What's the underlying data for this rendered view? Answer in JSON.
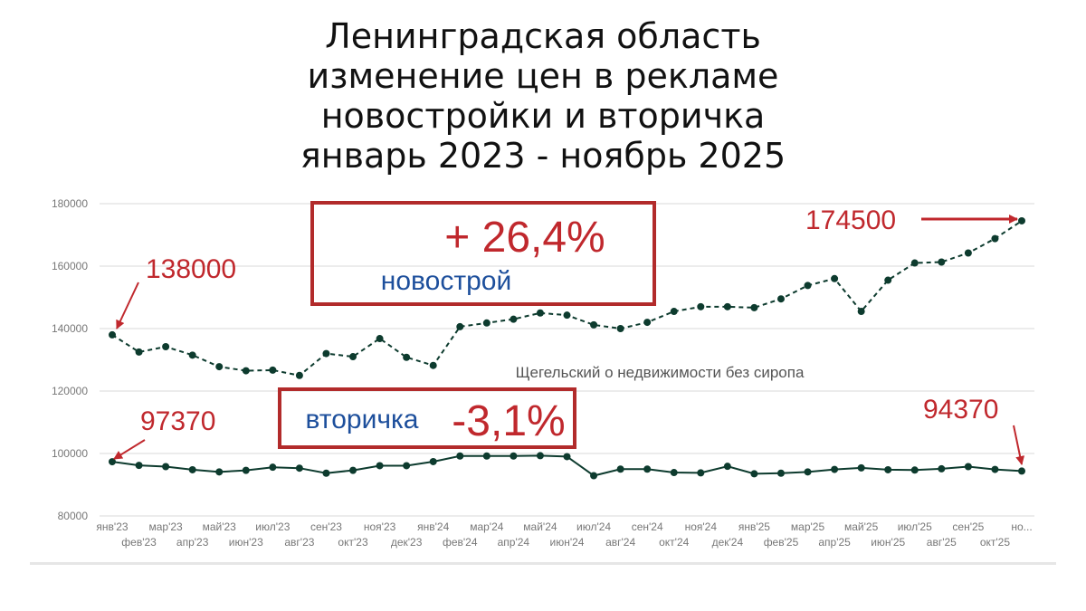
{
  "title": {
    "line1": "Ленинградская область",
    "line2": "изменение цен в рекламе",
    "line3": "новостройки и вторичка",
    "line4": "январь 2023 - ноябрь 2025"
  },
  "watermark": "Щегельский о недвижимости без сиропа",
  "colors": {
    "line": "#0d3b2e",
    "annotation_red": "#c0282d",
    "annotation_blue": "#1d4f9c",
    "grid": "#d9d9d9"
  },
  "annotations": {
    "new_change": "+ 26,4%",
    "new_label": "новострой",
    "new_start": "138000",
    "new_end": "174500",
    "secondary_change": "-3,1%",
    "secondary_label": "вторичка",
    "secondary_start": "97370",
    "secondary_end": "94370"
  },
  "chart_data": {
    "type": "line",
    "grid": true,
    "ylim": [
      80000,
      180000
    ],
    "y_ticks": [
      80000,
      100000,
      120000,
      140000,
      160000,
      180000
    ],
    "y_tick_labels": [
      "80000",
      "100000",
      "120000",
      "140000",
      "160000",
      "180000"
    ],
    "categories": [
      "янв'23",
      "фев'23",
      "мар'23",
      "апр'23",
      "май'23",
      "июн'23",
      "июл'23",
      "авг'23",
      "сен'23",
      "окт'23",
      "ноя'23",
      "дек'23",
      "янв'24",
      "фев'24",
      "мар'24",
      "апр'24",
      "май'24",
      "июн'24",
      "июл'24",
      "авг'24",
      "сен'24",
      "окт'24",
      "ноя'24",
      "дек'24",
      "янв'25",
      "фев'25",
      "мар'25",
      "апр'25",
      "май'25",
      "июн'25",
      "июл'25",
      "авг'25",
      "сен'25",
      "окт'25",
      "но..."
    ],
    "series": [
      {
        "name": "новострой",
        "style": "dashed",
        "values": [
          138000,
          132500,
          134200,
          131500,
          127800,
          126500,
          126700,
          125000,
          132000,
          131000,
          136800,
          130800,
          128200,
          140600,
          141800,
          143000,
          145000,
          144300,
          141200,
          140000,
          142000,
          145500,
          147000,
          147000,
          146700,
          149500,
          153800,
          156000,
          145500,
          155500,
          161000,
          161300,
          164200,
          168800,
          174500
        ]
      },
      {
        "name": "вторичка",
        "style": "solid",
        "values": [
          97370,
          96200,
          95800,
          94800,
          94100,
          94600,
          95600,
          95300,
          93700,
          94600,
          96100,
          96100,
          97400,
          99200,
          99200,
          99200,
          99300,
          99000,
          92900,
          95000,
          95000,
          93900,
          93800,
          95900,
          93500,
          93700,
          94100,
          94900,
          95400,
          94800,
          94700,
          95100,
          95800,
          94900,
          94370
        ]
      }
    ]
  }
}
